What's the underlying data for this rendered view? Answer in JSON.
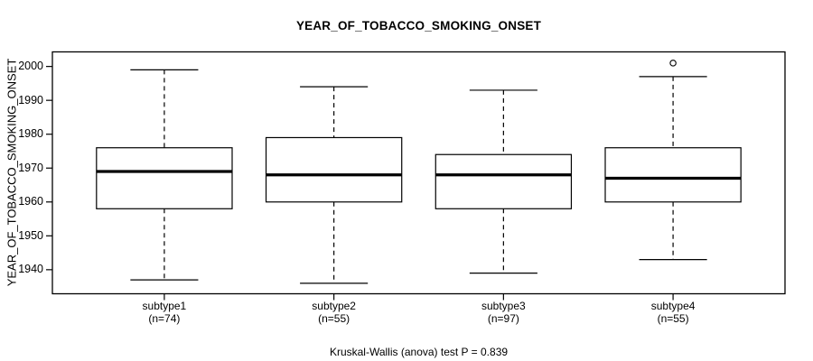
{
  "chart_data": {
    "type": "boxplot",
    "title": "YEAR_OF_TOBACCO_SMOKING_ONSET",
    "ylabel": "YEAR_OF_TOBACCO_SMOKING_ONSET",
    "xlabel": "",
    "caption": "Kruskal-Wallis (anova) test P = 0.839",
    "yticks": [
      1940,
      1950,
      1960,
      1970,
      1980,
      1990,
      2000
    ],
    "ylim": [
      1932.9,
      2004.3
    ],
    "xlim": [
      0.34,
      4.66
    ],
    "grid": false,
    "legend": null,
    "box_width": 0.8,
    "whisker_cap_width": 0.4,
    "line_color": "#000000",
    "background_color": "#ffffff",
    "groups": [
      {
        "position": 1,
        "label": "subtype1",
        "n": 74,
        "count_label": "(n=74)",
        "whisker_low": 1937,
        "q1": 1958,
        "median": 1969,
        "q3": 1976,
        "whisker_high": 1999,
        "outliers": []
      },
      {
        "position": 2,
        "label": "subtype2",
        "n": 55,
        "count_label": "(n=55)",
        "whisker_low": 1936,
        "q1": 1960,
        "median": 1968,
        "q3": 1979,
        "whisker_high": 1994,
        "outliers": []
      },
      {
        "position": 3,
        "label": "subtype3",
        "n": 97,
        "count_label": "(n=97)",
        "whisker_low": 1939,
        "q1": 1958,
        "median": 1968,
        "q3": 1974,
        "whisker_high": 1993,
        "outliers": []
      },
      {
        "position": 4,
        "label": "subtype4",
        "n": 55,
        "count_label": "(n=55)",
        "whisker_low": 1943,
        "q1": 1960,
        "median": 1967,
        "q3": 1976,
        "whisker_high": 1997,
        "outliers": [
          2001
        ]
      }
    ]
  }
}
